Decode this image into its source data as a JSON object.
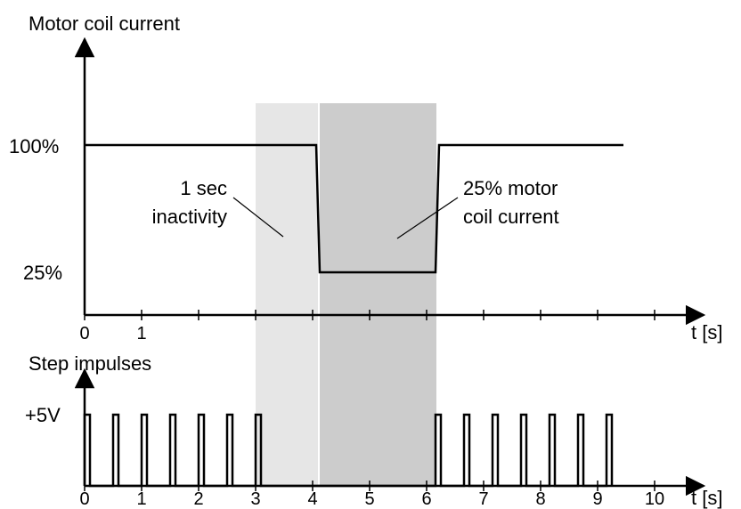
{
  "colors": {
    "line": "#000000",
    "inactivity_band": "#e6e6e6",
    "reduced_band": "#cccccc",
    "background": "#ffffff"
  },
  "top_plot": {
    "title": "Motor coil current",
    "level_high": "100%",
    "level_low": "25%",
    "x_ticks": [
      "0",
      "1"
    ],
    "x_axis_label": "t [s]",
    "annotation_left": [
      "1 sec",
      "inactivity"
    ],
    "annotation_right": [
      "25% motor",
      "coil current"
    ]
  },
  "bottom_plot": {
    "title": "Step impulses",
    "level_label": "+5V",
    "x_ticks": [
      "0",
      "1",
      "2",
      "3",
      "4",
      "5",
      "6",
      "7",
      "8",
      "9",
      "10"
    ],
    "x_axis_label": "t [s]"
  }
}
